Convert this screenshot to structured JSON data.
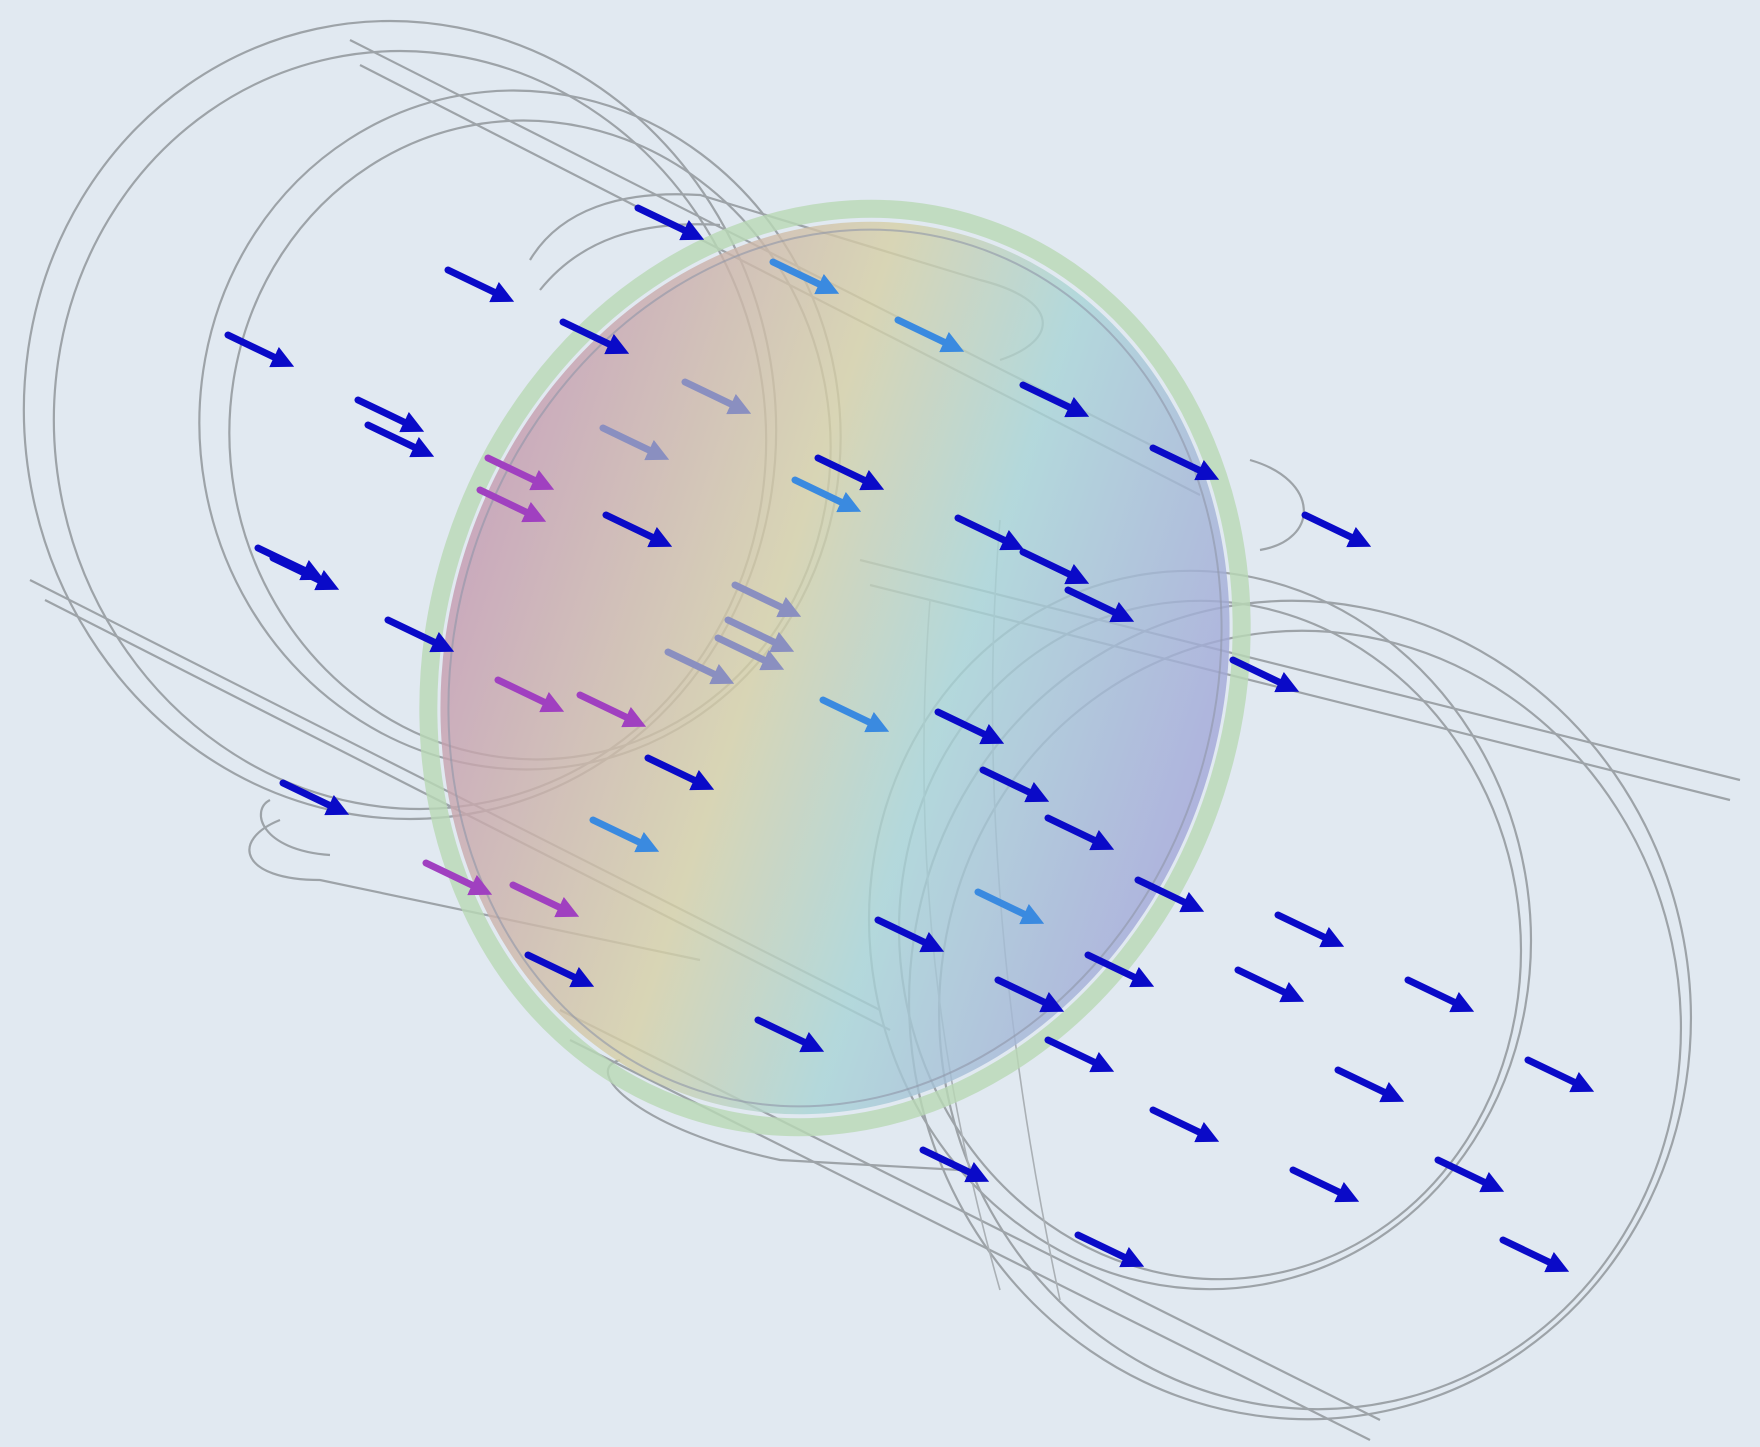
{
  "scene": {
    "background": "#e1e9f1",
    "wireframe_color": "#9da3a8",
    "arrow_color": "#0a0ac8",
    "disk_gradient": [
      "#c49ab0",
      "#d6d0a6",
      "#a8d4d6",
      "#a2a6d8"
    ],
    "disk_rim_color": "#b9d8b5",
    "arrow_tint_colors": [
      "#a040c0",
      "#8a8fc0",
      "#3a8ae0",
      "#0a0ac8"
    ]
  }
}
